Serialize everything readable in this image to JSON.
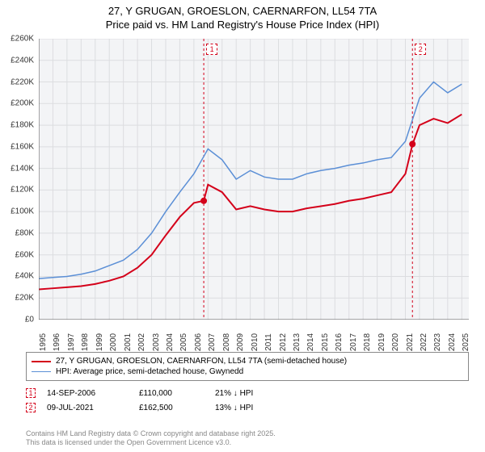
{
  "title_line1": "27, Y GRUGAN, GROESLON, CAERNARFON, LL54 7TA",
  "title_line2": "Price paid vs. HM Land Registry's House Price Index (HPI)",
  "chart": {
    "type": "line",
    "background_color": "#f3f4f6",
    "grid_color": "#dcdde0",
    "axis_color": "#555555",
    "xlim": [
      1995,
      2025.5
    ],
    "ylim": [
      0,
      260000
    ],
    "ytick_step": 20000,
    "ytick_labels": [
      "£0",
      "£20K",
      "£40K",
      "£60K",
      "£80K",
      "£100K",
      "£120K",
      "£140K",
      "£160K",
      "£180K",
      "£200K",
      "£220K",
      "£240K",
      "£260K"
    ],
    "xticks": [
      1995,
      1996,
      1997,
      1998,
      1999,
      2000,
      2001,
      2002,
      2003,
      2004,
      2005,
      2006,
      2007,
      2008,
      2009,
      2010,
      2011,
      2012,
      2013,
      2014,
      2015,
      2016,
      2017,
      2018,
      2019,
      2020,
      2021,
      2022,
      2023,
      2024,
      2025
    ],
    "title_fontsize": 13,
    "tick_fontsize": 10,
    "series": [
      {
        "name": "property",
        "color": "#d4001a",
        "width": 2,
        "x": [
          1995,
          1996,
          1997,
          1998,
          1999,
          2000,
          2001,
          2002,
          2003,
          2004,
          2005,
          2006,
          2006.7,
          2007,
          2008,
          2009,
          2010,
          2011,
          2012,
          2013,
          2014,
          2015,
          2016,
          2017,
          2018,
          2019,
          2020,
          2021,
          2021.5,
          2022,
          2023,
          2024,
          2025
        ],
        "y": [
          28000,
          29000,
          30000,
          31000,
          33000,
          36000,
          40000,
          48000,
          60000,
          78000,
          95000,
          108000,
          110000,
          125000,
          118000,
          102000,
          105000,
          102000,
          100000,
          100000,
          103000,
          105000,
          107000,
          110000,
          112000,
          115000,
          118000,
          135000,
          162000,
          180000,
          186000,
          182000,
          190000
        ]
      },
      {
        "name": "hpi",
        "color": "#5b8fd6",
        "width": 1.5,
        "x": [
          1995,
          1996,
          1997,
          1998,
          1999,
          2000,
          2001,
          2002,
          2003,
          2004,
          2005,
          2006,
          2007,
          2008,
          2009,
          2010,
          2011,
          2012,
          2013,
          2014,
          2015,
          2016,
          2017,
          2018,
          2019,
          2020,
          2021,
          2022,
          2023,
          2024,
          2025
        ],
        "y": [
          38000,
          39000,
          40000,
          42000,
          45000,
          50000,
          55000,
          65000,
          80000,
          100000,
          118000,
          135000,
          158000,
          148000,
          130000,
          138000,
          132000,
          130000,
          130000,
          135000,
          138000,
          140000,
          143000,
          145000,
          148000,
          150000,
          165000,
          205000,
          220000,
          210000,
          218000
        ]
      }
    ],
    "sale_markers": [
      {
        "n": "1",
        "x": 2006.7,
        "y": 110000,
        "color": "#d4001a"
      },
      {
        "n": "2",
        "x": 2021.5,
        "y": 162500,
        "color": "#d4001a"
      }
    ]
  },
  "legend": {
    "items": [
      {
        "color": "#d4001a",
        "width": 2,
        "label": "27, Y GRUGAN, GROESLON, CAERNARFON, LL54 7TA (semi-detached house)"
      },
      {
        "color": "#5b8fd6",
        "width": 1.5,
        "label": "HPI: Average price, semi-detached house, Gwynedd"
      }
    ]
  },
  "sales": [
    {
      "n": "1",
      "color": "#d4001a",
      "date": "14-SEP-2006",
      "price": "£110,000",
      "delta": "21% ↓ HPI"
    },
    {
      "n": "2",
      "color": "#d4001a",
      "date": "09-JUL-2021",
      "price": "£162,500",
      "delta": "13% ↓ HPI"
    }
  ],
  "footer_line1": "Contains HM Land Registry data © Crown copyright and database right 2025.",
  "footer_line2": "This data is licensed under the Open Government Licence v3.0."
}
